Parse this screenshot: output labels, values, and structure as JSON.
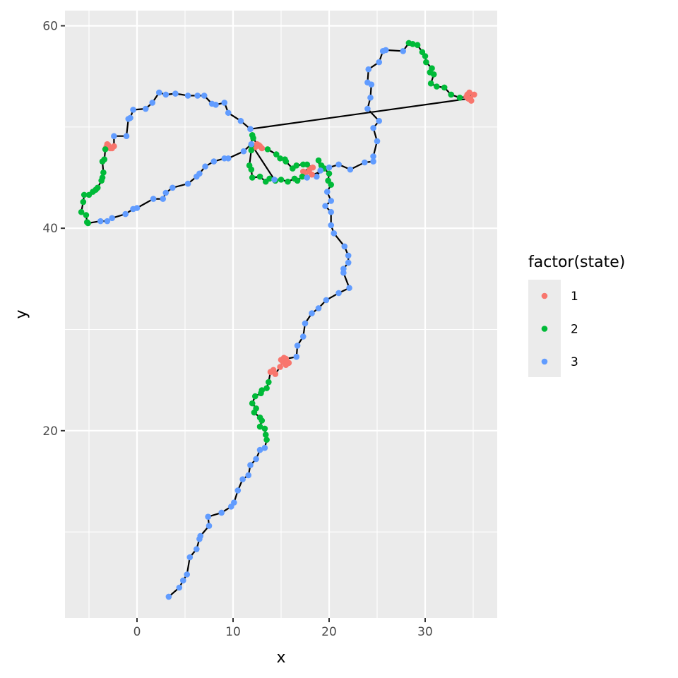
{
  "chart_data": {
    "type": "scatter",
    "title": "",
    "xlabel": "x",
    "ylabel": "y",
    "xlim": [
      -7.5,
      37.5
    ],
    "ylim": [
      1.5,
      61.5
    ],
    "x_ticks": [
      0,
      10,
      20,
      30
    ],
    "x_tick_labels": [
      "0",
      "10",
      "20",
      "30"
    ],
    "y_ticks": [
      20,
      40,
      60
    ],
    "y_tick_labels": [
      "20",
      "40",
      "60"
    ],
    "grid": true,
    "path_color": "#000000",
    "panel_background": "#ebebeb",
    "legend": {
      "title": "factor(state)",
      "position": "right",
      "entries": [
        {
          "label": "1",
          "color": "#F8766D"
        },
        {
          "label": "2",
          "color": "#00BA38"
        },
        {
          "label": "3",
          "color": "#619CFF"
        }
      ]
    },
    "points": [
      [
        3.3,
        3.6,
        3
      ],
      [
        4.4,
        4.5,
        3
      ],
      [
        4.8,
        5.2,
        3
      ],
      [
        5.2,
        5.8,
        3
      ],
      [
        5.5,
        7.5,
        3
      ],
      [
        6.2,
        8.3,
        3
      ],
      [
        6.5,
        9.3,
        3
      ],
      [
        6.6,
        9.6,
        3
      ],
      [
        7.5,
        10.6,
        3
      ],
      [
        7.4,
        11.5,
        3
      ],
      [
        8.8,
        11.9,
        3
      ],
      [
        9.8,
        12.5,
        3
      ],
      [
        10.1,
        12.9,
        3
      ],
      [
        10.5,
        14.1,
        3
      ],
      [
        11.0,
        15.2,
        3
      ],
      [
        11.6,
        15.6,
        3
      ],
      [
        11.8,
        16.6,
        3
      ],
      [
        12.4,
        17.2,
        3
      ],
      [
        12.8,
        18.1,
        3
      ],
      [
        13.3,
        18.3,
        3
      ],
      [
        13.5,
        19.1,
        2
      ],
      [
        13.4,
        19.6,
        2
      ],
      [
        13.3,
        20.2,
        2
      ],
      [
        12.8,
        20.4,
        2
      ],
      [
        13.0,
        21.0,
        2
      ],
      [
        12.8,
        21.3,
        2
      ],
      [
        12.2,
        21.8,
        2
      ],
      [
        12.4,
        22.2,
        2
      ],
      [
        12.0,
        22.7,
        2
      ],
      [
        12.3,
        23.4,
        2
      ],
      [
        12.9,
        23.7,
        2
      ],
      [
        13.0,
        24.0,
        2
      ],
      [
        13.5,
        24.2,
        2
      ],
      [
        13.7,
        24.8,
        2
      ],
      [
        13.9,
        25.8,
        1
      ],
      [
        14.2,
        26.0,
        1
      ],
      [
        14.4,
        25.6,
        1
      ],
      [
        14.9,
        26.3,
        1
      ],
      [
        15.2,
        26.8,
        1
      ],
      [
        15.5,
        27.1,
        1
      ],
      [
        15.8,
        26.7,
        1
      ],
      [
        15.3,
        27.2,
        1
      ],
      [
        15.5,
        26.5,
        1
      ],
      [
        15.0,
        27.0,
        1
      ],
      [
        16.6,
        27.3,
        3
      ],
      [
        16.7,
        28.4,
        3
      ],
      [
        17.3,
        29.3,
        3
      ],
      [
        17.5,
        30.6,
        3
      ],
      [
        18.2,
        31.6,
        3
      ],
      [
        18.9,
        32.1,
        3
      ],
      [
        19.7,
        32.9,
        3
      ],
      [
        21.0,
        33.6,
        3
      ],
      [
        22.1,
        34.1,
        3
      ],
      [
        21.5,
        35.6,
        3
      ],
      [
        21.5,
        36.0,
        3
      ],
      [
        22.0,
        36.6,
        3
      ],
      [
        22.0,
        37.3,
        3
      ],
      [
        21.6,
        38.2,
        3
      ],
      [
        20.5,
        39.5,
        3
      ],
      [
        20.2,
        40.3,
        3
      ],
      [
        20.2,
        41.6,
        3
      ],
      [
        19.6,
        42.2,
        3
      ],
      [
        20.2,
        42.7,
        3
      ],
      [
        19.8,
        43.6,
        3
      ],
      [
        20.2,
        44.3,
        2
      ],
      [
        19.9,
        44.7,
        2
      ],
      [
        20.0,
        45.4,
        2
      ],
      [
        19.5,
        45.9,
        2
      ],
      [
        19.2,
        46.2,
        2
      ],
      [
        18.9,
        46.7,
        2
      ],
      [
        19.1,
        45.7,
        3
      ],
      [
        18.7,
        45.1,
        3
      ],
      [
        18.2,
        45.3,
        1
      ],
      [
        17.9,
        45.6,
        1
      ],
      [
        17.5,
        45.2,
        1
      ],
      [
        17.3,
        45.6,
        1
      ],
      [
        18.0,
        45.9,
        1
      ],
      [
        18.3,
        46.0,
        1
      ],
      [
        17.7,
        46.3,
        2
      ],
      [
        17.3,
        46.3,
        2
      ],
      [
        16.6,
        46.2,
        2
      ],
      [
        16.2,
        45.9,
        2
      ],
      [
        15.5,
        46.6,
        2
      ],
      [
        15.4,
        46.8,
        2
      ],
      [
        14.9,
        46.9,
        2
      ],
      [
        14.5,
        47.3,
        2
      ],
      [
        13.6,
        47.8,
        2
      ],
      [
        13.0,
        47.9,
        1
      ],
      [
        12.7,
        48.2,
        1
      ],
      [
        12.3,
        48.0,
        1
      ],
      [
        12.8,
        48.1,
        1
      ],
      [
        12.5,
        48.3,
        1
      ],
      [
        12.1,
        48.9,
        2
      ],
      [
        12.0,
        49.2,
        2
      ],
      [
        11.9,
        48.2,
        2
      ],
      [
        11.9,
        47.7,
        2
      ],
      [
        11.7,
        46.2,
        2
      ],
      [
        11.9,
        45.8,
        2
      ],
      [
        12.0,
        45.0,
        2
      ],
      [
        12.8,
        45.1,
        2
      ],
      [
        13.4,
        44.6,
        2
      ],
      [
        13.8,
        44.9,
        2
      ],
      [
        14.4,
        44.7,
        2
      ],
      [
        15.0,
        44.8,
        2
      ],
      [
        15.7,
        44.6,
        2
      ],
      [
        16.4,
        44.9,
        2
      ],
      [
        16.7,
        44.7,
        2
      ],
      [
        17.2,
        45.1,
        2
      ],
      [
        17.7,
        45.0,
        3
      ],
      [
        20.0,
        46.0,
        3
      ],
      [
        21.0,
        46.3,
        3
      ],
      [
        22.2,
        45.8,
        3
      ],
      [
        23.7,
        46.5,
        3
      ],
      [
        24.6,
        46.6,
        3
      ],
      [
        24.6,
        47.1,
        3
      ],
      [
        25.0,
        48.6,
        3
      ],
      [
        24.6,
        49.9,
        3
      ],
      [
        25.2,
        50.6,
        3
      ],
      [
        24.0,
        51.8,
        3
      ],
      [
        24.3,
        52.9,
        3
      ],
      [
        24.4,
        54.2,
        3
      ],
      [
        24.0,
        54.4,
        3
      ],
      [
        24.1,
        55.7,
        3
      ],
      [
        25.2,
        56.4,
        3
      ],
      [
        25.6,
        57.5,
        3
      ],
      [
        25.9,
        57.6,
        3
      ],
      [
        27.7,
        57.5,
        3
      ],
      [
        28.3,
        58.3,
        2
      ],
      [
        28.7,
        58.2,
        2
      ],
      [
        29.2,
        58.1,
        2
      ],
      [
        29.7,
        57.4,
        2
      ],
      [
        30.0,
        57.0,
        2
      ],
      [
        30.1,
        56.4,
        2
      ],
      [
        30.7,
        55.8,
        2
      ],
      [
        30.5,
        55.4,
        2
      ],
      [
        30.9,
        55.2,
        2
      ],
      [
        30.6,
        54.3,
        2
      ],
      [
        31.2,
        54.0,
        2
      ],
      [
        32.0,
        53.9,
        2
      ],
      [
        32.7,
        53.2,
        2
      ],
      [
        33.6,
        52.9,
        2
      ],
      [
        34.3,
        53.0,
        1
      ],
      [
        34.7,
        52.8,
        1
      ],
      [
        34.4,
        53.2,
        1
      ],
      [
        35.1,
        53.2,
        1
      ],
      [
        34.6,
        53.4,
        1
      ],
      [
        34.8,
        52.6,
        1
      ],
      [
        34.5,
        52.8,
        1
      ],
      [
        11.8,
        49.8,
        3
      ],
      [
        10.8,
        50.6,
        3
      ],
      [
        9.5,
        51.4,
        3
      ],
      [
        9.1,
        52.4,
        3
      ],
      [
        8.2,
        52.2,
        3
      ],
      [
        7.8,
        52.3,
        3
      ],
      [
        7.0,
        53.1,
        3
      ],
      [
        6.3,
        53.1,
        3
      ],
      [
        5.3,
        53.1,
        3
      ],
      [
        4.0,
        53.3,
        3
      ],
      [
        3.0,
        53.2,
        3
      ],
      [
        2.3,
        53.4,
        3
      ],
      [
        1.6,
        52.4,
        3
      ],
      [
        0.9,
        51.8,
        3
      ],
      [
        -0.4,
        51.7,
        3
      ],
      [
        -0.7,
        50.9,
        3
      ],
      [
        -0.9,
        50.8,
        3
      ],
      [
        -1.1,
        49.1,
        3
      ],
      [
        -2.4,
        49.1,
        3
      ],
      [
        -2.4,
        48.1,
        1
      ],
      [
        -2.8,
        47.9,
        1
      ],
      [
        -3.1,
        48.3,
        1
      ],
      [
        -3.2,
        48.0,
        1
      ],
      [
        -3.0,
        48.2,
        1
      ],
      [
        -2.6,
        47.9,
        1
      ],
      [
        -3.3,
        47.8,
        2
      ],
      [
        -3.4,
        46.8,
        2
      ],
      [
        -3.6,
        46.6,
        2
      ],
      [
        -3.5,
        45.5,
        2
      ],
      [
        -3.6,
        45.0,
        2
      ],
      [
        -3.7,
        44.7,
        2
      ],
      [
        -4.1,
        44.0,
        2
      ],
      [
        -4.3,
        43.8,
        2
      ],
      [
        -4.6,
        43.6,
        2
      ],
      [
        -5.0,
        43.3,
        2
      ],
      [
        -5.5,
        43.3,
        2
      ],
      [
        -5.6,
        42.6,
        2
      ],
      [
        -5.8,
        41.6,
        2
      ],
      [
        -5.3,
        41.3,
        2
      ],
      [
        -5.2,
        40.6,
        2
      ],
      [
        -5.1,
        40.5,
        2
      ],
      [
        -3.8,
        40.7,
        3
      ],
      [
        -3.1,
        40.7,
        3
      ],
      [
        -2.6,
        41.0,
        3
      ],
      [
        -1.2,
        41.4,
        3
      ],
      [
        -0.4,
        41.9,
        3
      ],
      [
        0.0,
        42.0,
        3
      ],
      [
        1.7,
        42.9,
        3
      ],
      [
        2.7,
        42.9,
        3
      ],
      [
        3.0,
        43.5,
        3
      ],
      [
        3.7,
        44.0,
        3
      ],
      [
        5.3,
        44.4,
        3
      ],
      [
        6.2,
        45.1,
        3
      ],
      [
        6.5,
        45.4,
        3
      ],
      [
        7.1,
        46.1,
        3
      ],
      [
        8.0,
        46.6,
        3
      ],
      [
        9.1,
        46.9,
        3
      ],
      [
        9.5,
        46.9,
        3
      ],
      [
        11.1,
        47.6,
        3
      ],
      [
        11.9,
        48.3,
        3
      ],
      [
        14.3,
        44.8,
        3
      ]
    ]
  }
}
